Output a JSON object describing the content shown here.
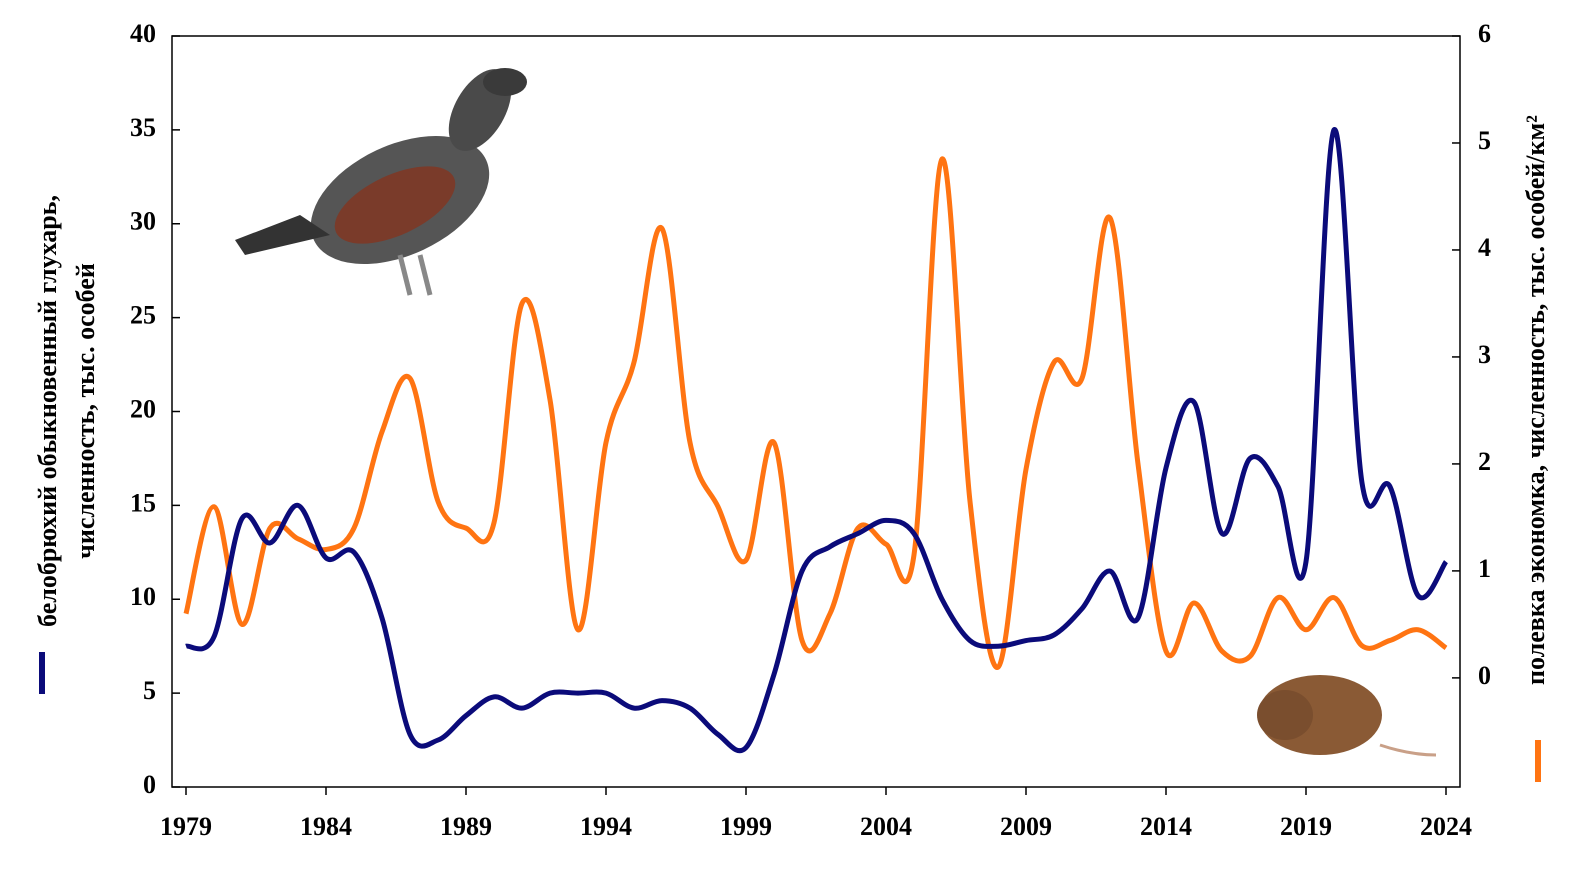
{
  "chart_data": {
    "type": "line",
    "y_label": [
      "белобрюхий обыкновенный глухарь,",
      "численность, тыс. особей"
    ],
    "y2_label": "полевка экономка, численность, тыс. особей/км²",
    "x": [
      1979,
      1980,
      1981,
      1982,
      1983,
      1984,
      1985,
      1986,
      1987,
      1988,
      1989,
      1990,
      1991,
      1992,
      1993,
      1994,
      1995,
      1996,
      1997,
      1998,
      1999,
      2000,
      2001,
      2002,
      2003,
      2004,
      2005,
      2006,
      2007,
      2008,
      2009,
      2010,
      2011,
      2012,
      2013,
      2014,
      2015,
      2016,
      2017,
      2018,
      2019,
      2020,
      2021,
      2022,
      2023,
      2024
    ],
    "series": [
      {
        "color": "#0b0b7a",
        "axis": "y",
        "values": [
          7.5,
          8,
          14.3,
          13,
          15,
          12.2,
          12.5,
          9,
          2.8,
          2.5,
          3.8,
          4.8,
          4.2,
          5,
          5,
          5,
          4.2,
          4.6,
          4.2,
          2.8,
          2.1,
          6,
          11.5,
          12.8,
          13.5,
          14.2,
          13.5,
          10,
          7.8,
          7.5,
          7.8,
          8.1,
          9.5,
          11.5,
          9,
          17,
          20.5,
          13.5,
          17.5,
          16,
          12,
          35,
          16.2,
          16,
          10.2,
          12
        ]
      },
      {
        "color": "#ff7412",
        "axis": "y2",
        "values": [
          0.6,
          1.6,
          0.5,
          1.4,
          1.3,
          1.2,
          1.4,
          2.3,
          2.8,
          1.65,
          1.4,
          1.45,
          3.5,
          2.6,
          0.45,
          2.2,
          2.95,
          4.2,
          2.2,
          1.6,
          1.1,
          2.2,
          0.35,
          0.6,
          1.4,
          1.25,
          1.15,
          4.85,
          1.65,
          0.1,
          1.95,
          2.95,
          2.8,
          4.3,
          2.0,
          0.25,
          0.7,
          0.25,
          0.2,
          0.75,
          0.45,
          0.75,
          0.3,
          0.35,
          0.45,
          0.28
        ]
      }
    ],
    "xlim": [
      1978.5,
      2024.5
    ],
    "xticks": [
      1979,
      1984,
      1989,
      1994,
      1999,
      2004,
      2009,
      2014,
      2019,
      2024
    ],
    "ylim": [
      0,
      40
    ],
    "yticks": [
      0,
      5,
      10,
      15,
      20,
      25,
      30,
      35,
      40
    ],
    "y2lim": [
      -1.02,
      6
    ],
    "y2ticks": [
      0,
      1,
      2,
      3,
      4,
      5,
      6
    ]
  }
}
